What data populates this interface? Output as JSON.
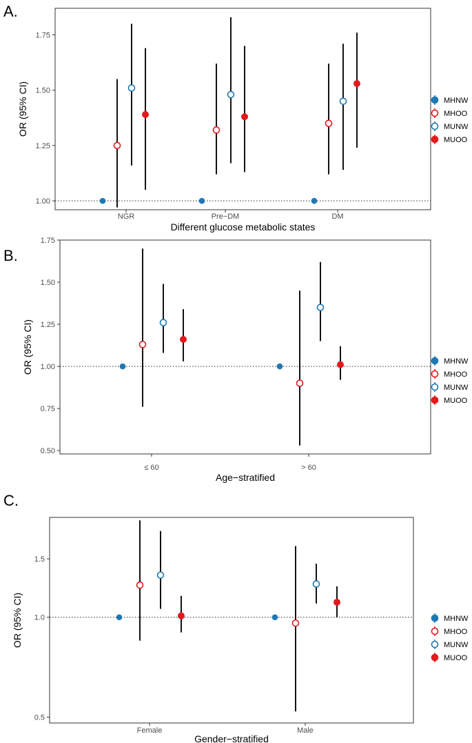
{
  "chart_data": [
    {
      "panel_label": "A.",
      "type": "scatter",
      "subtype": "point-range (odds ratio with 95% CI)",
      "xlabel": "Different glucose metabolic states",
      "ylabel": "OR (95% CI)",
      "categories": [
        "NGR",
        "Pre−DM",
        "DM"
      ],
      "yticks": [
        1.0,
        1.25,
        1.5,
        1.75
      ],
      "ytick_labels": [
        "1.00",
        "1.25",
        "1.50",
        "1.75"
      ],
      "ylim": [
        0.96,
        1.87
      ],
      "reference_line": 1.0,
      "series": [
        {
          "name": "MHNW",
          "est": [
            1.0,
            1.0,
            1.0
          ],
          "lo": [
            null,
            null,
            null
          ],
          "hi": [
            null,
            null,
            null
          ]
        },
        {
          "name": "MHOO",
          "est": [
            1.25,
            1.32,
            1.35
          ],
          "lo": [
            0.97,
            1.12,
            1.12
          ],
          "hi": [
            1.55,
            1.62,
            1.62
          ]
        },
        {
          "name": "MUNW",
          "est": [
            1.51,
            1.48,
            1.45
          ],
          "lo": [
            1.16,
            1.17,
            1.14
          ],
          "hi": [
            1.8,
            1.83,
            1.71
          ]
        },
        {
          "name": "MUOO",
          "est": [
            1.39,
            1.38,
            1.53
          ],
          "lo": [
            1.05,
            1.13,
            1.24
          ],
          "hi": [
            1.69,
            1.7,
            1.76
          ]
        }
      ]
    },
    {
      "panel_label": "B.",
      "type": "scatter",
      "subtype": "point-range (odds ratio with 95% CI)",
      "xlabel": "Age−stratified",
      "ylabel": "OR (95% CI)",
      "categories": [
        "≤ 60",
        "> 60"
      ],
      "yticks": [
        0.5,
        0.75,
        1.0,
        1.25,
        1.5,
        1.75
      ],
      "ytick_labels": [
        "0.50",
        "0.75",
        "1.00",
        "1.25",
        "1.50",
        "1.75"
      ],
      "ylim": [
        0.48,
        1.75
      ],
      "reference_line": 1.0,
      "series": [
        {
          "name": "MHNW",
          "est": [
            1.0,
            1.0
          ],
          "lo": [
            null,
            null
          ],
          "hi": [
            null,
            null
          ]
        },
        {
          "name": "MHOO",
          "est": [
            1.13,
            0.9
          ],
          "lo": [
            0.76,
            0.53
          ],
          "hi": [
            1.7,
            1.45
          ]
        },
        {
          "name": "MUNW",
          "est": [
            1.26,
            1.35
          ],
          "lo": [
            1.08,
            1.15
          ],
          "hi": [
            1.49,
            1.62
          ]
        },
        {
          "name": "MUOO",
          "est": [
            1.16,
            1.01
          ],
          "lo": [
            1.03,
            0.92
          ],
          "hi": [
            1.34,
            1.12
          ]
        }
      ]
    },
    {
      "panel_label": "C.",
      "type": "scatter",
      "subtype": "point-range (odds ratio with 95% CI), log-scaled y axis",
      "xlabel": "Gender−stratified",
      "ylabel": "OR (95% CI)",
      "categories": [
        "Female",
        "Male"
      ],
      "yscale": "log",
      "yticks": [
        0.5,
        1.0,
        1.5
      ],
      "ytick_labels": [
        "0.5",
        "1.0",
        "1.5"
      ],
      "ylim": [
        0.48,
        2.0
      ],
      "reference_line": 1.0,
      "series": [
        {
          "name": "MHNW",
          "est": [
            1.0,
            1.0
          ],
          "lo": [
            null,
            null
          ],
          "hi": [
            null,
            null
          ]
        },
        {
          "name": "MHOO",
          "est": [
            1.25,
            0.96
          ],
          "lo": [
            0.85,
            0.52
          ],
          "hi": [
            1.96,
            1.64
          ]
        },
        {
          "name": "MUNW",
          "est": [
            1.34,
            1.26
          ],
          "lo": [
            1.06,
            1.1
          ],
          "hi": [
            1.82,
            1.45
          ]
        },
        {
          "name": "MUOO",
          "est": [
            1.01,
            1.11
          ],
          "lo": [
            0.9,
            1.0
          ],
          "hi": [
            1.16,
            1.24
          ]
        }
      ]
    }
  ],
  "legend": {
    "placement": "right",
    "items": [
      {
        "name": "MHNW",
        "color": "#1f78b4",
        "filled": true
      },
      {
        "name": "MHOO",
        "color": "#e31a1c",
        "filled": false
      },
      {
        "name": "MUNW",
        "color": "#1f78b4",
        "filled": false
      },
      {
        "name": "MUOO",
        "color": "#e31a1c",
        "filled": true
      }
    ]
  },
  "colors": {
    "blue": "#1f78b4",
    "red": "#e31a1c",
    "errorbar": "#111111",
    "frame": "#333333"
  }
}
